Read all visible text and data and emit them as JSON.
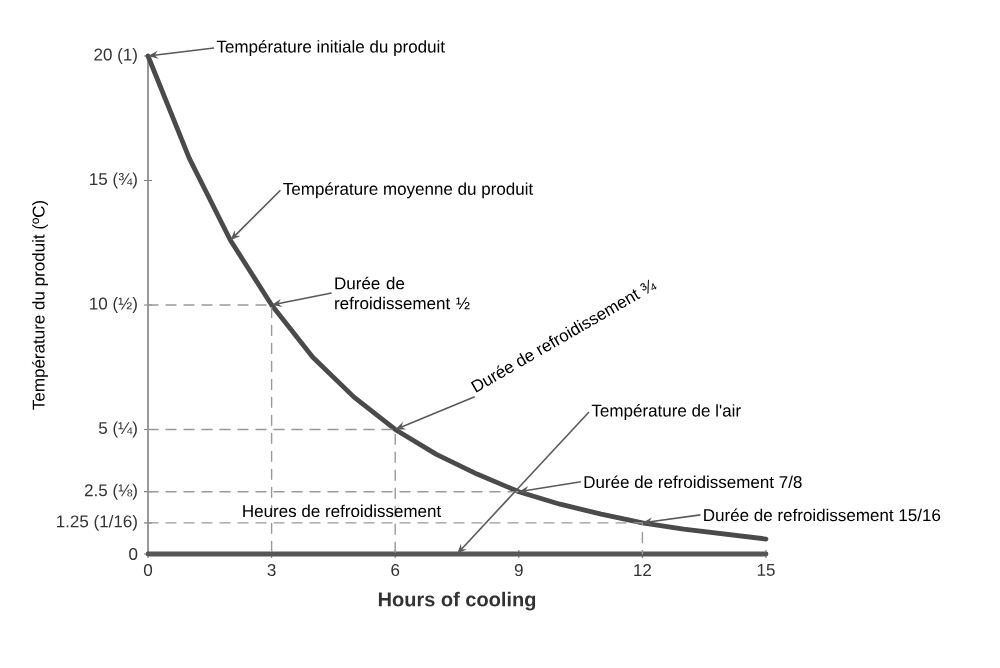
{
  "chart_data": {
    "type": "line",
    "xlabel": "Hours of cooling",
    "ylabel": "Température du produit (ºC)",
    "xlim": [
      0,
      15
    ],
    "ylim": [
      0,
      20
    ],
    "xticks": [
      0,
      3,
      6,
      9,
      12,
      15
    ],
    "yticks": [
      0,
      {
        "value": 1.25,
        "label": "1.25 (1/16)"
      },
      {
        "value": 2.5,
        "label": "2.5 (⅛)"
      },
      {
        "value": 5,
        "label": "5 (¼)"
      },
      {
        "value": 10,
        "label": "10 (½)"
      },
      {
        "value": 15,
        "label": "15 (¾)"
      },
      {
        "value": 20,
        "label": "20 (1)"
      }
    ],
    "series": [
      {
        "color": "#4a4a4a",
        "x": [
          0,
          1,
          2,
          3,
          4,
          5,
          6,
          7,
          8,
          9,
          10,
          11,
          12,
          13,
          14,
          15
        ],
        "values": [
          20,
          15.9,
          12.6,
          10,
          7.9,
          6.3,
          5,
          4,
          3.2,
          2.5,
          2,
          1.6,
          1.25,
          1,
          0.8,
          0.6
        ]
      },
      {
        "color": "#555555",
        "x": [
          0,
          15
        ],
        "values": [
          0,
          0
        ]
      },
      {
        "color": "#999999",
        "line_style": "dashed",
        "x": [
          0,
          3,
          3
        ],
        "values": [
          10,
          10,
          0
        ]
      },
      {
        "color": "#999999",
        "line_style": "dashed",
        "x": [
          0,
          6,
          6
        ],
        "values": [
          5,
          5,
          0
        ]
      },
      {
        "color": "#999999",
        "line_style": "dashed",
        "x": [
          0,
          9
        ],
        "values": [
          2.5,
          2.5
        ]
      },
      {
        "color": "#999999",
        "line_style": "dashed",
        "x": [
          0,
          12,
          12
        ],
        "values": [
          1.25,
          1.25,
          0
        ]
      }
    ],
    "annotations": [
      {
        "text": "Température initiale du produit",
        "x": 0,
        "y": 20
      },
      {
        "text": "Température moyenne du produit",
        "x": 2,
        "y": 12.6
      },
      {
        "text": "Durée de refroidissement ½",
        "x": 3,
        "y": 10
      },
      {
        "text": "Durée de refroidissement ¾",
        "x": 6,
        "y": 5
      },
      {
        "text": "Température de l'air",
        "x": 7.5,
        "y": 0
      },
      {
        "text": "Durée de refroidissement 7/8",
        "x": 9,
        "y": 2.5
      },
      {
        "text": "Durée de refroidissement 15/16",
        "x": 12,
        "y": 1.25
      },
      "Heures de refroidissement"
    ]
  }
}
